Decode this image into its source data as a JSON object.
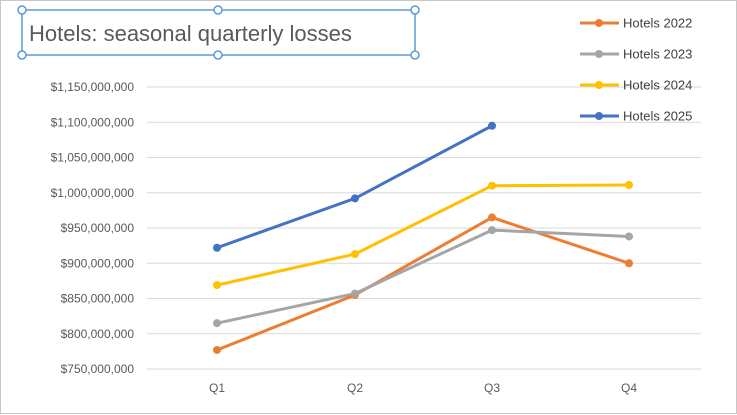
{
  "chart_data": {
    "type": "line",
    "title": "Hotels: seasonal quarterly losses",
    "categories": [
      "Q1",
      "Q2",
      "Q3",
      "Q4"
    ],
    "ylim": [
      750000000,
      1150000000
    ],
    "ytick_step": 50000000,
    "ytick_labels": [
      "$750,000,000",
      "$800,000,000",
      "$850,000,000",
      "$900,000,000",
      "$950,000,000",
      "$1,000,000,000",
      "$1,050,000,000",
      "$1,100,000,000",
      "$1,150,000,000"
    ],
    "grid": true,
    "legend_position": "top-right",
    "series": [
      {
        "name": "Hotels 2022",
        "color": "#ed7d31",
        "values": [
          777000000,
          855000000,
          965000000,
          900000000
        ]
      },
      {
        "name": "Hotels 2023",
        "color": "#a5a5a5",
        "values": [
          815000000,
          857000000,
          947000000,
          938000000
        ]
      },
      {
        "name": "Hotels 2024",
        "color": "#ffc000",
        "values": [
          869000000,
          913000000,
          1010000000,
          1011000000
        ]
      },
      {
        "name": "Hotels 2025",
        "color": "#4472c4",
        "values": [
          922000000,
          992000000,
          1095000000,
          null
        ]
      }
    ]
  }
}
